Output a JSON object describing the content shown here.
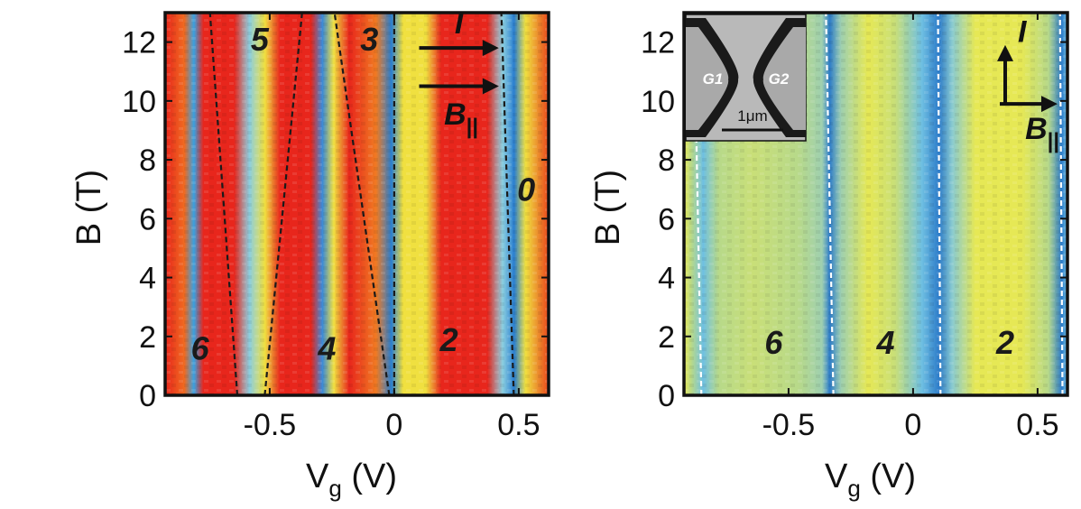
{
  "chart_data": [
    {
      "type": "heatmap",
      "title": "",
      "xlabel_main": "V",
      "xlabel_sub": "g",
      "xlabel_unit": " (V)",
      "ylabel": "B (T)",
      "xlim": [
        -0.92,
        0.62
      ],
      "ylim": [
        0,
        13
      ],
      "xticks": [
        {
          "value": -0.5,
          "label": "-0.5"
        },
        {
          "value": 0,
          "label": "0"
        },
        {
          "value": 0.5,
          "label": "0.5"
        }
      ],
      "yticks": [
        {
          "value": 0,
          "label": "0"
        },
        {
          "value": 2,
          "label": "2"
        },
        {
          "value": 4,
          "label": "4"
        },
        {
          "value": 6,
          "label": "6"
        },
        {
          "value": 8,
          "label": "8"
        },
        {
          "value": 10,
          "label": "10"
        },
        {
          "value": 12,
          "label": "12"
        }
      ],
      "colormap": "jet",
      "colors": {
        "red": "#e8261c",
        "yellow": "#f0e040",
        "lightblue": "#8ccfe0",
        "blue": "#2a7fd0",
        "dark": "#1a1a1a"
      },
      "boundary_lines": [
        {
          "points": [
            [
              -0.63,
              0
            ],
            [
              -0.74,
              13
            ]
          ],
          "style": "dashed",
          "color": "#1a1a1a"
        },
        {
          "points": [
            [
              -0.52,
              0
            ],
            [
              -0.37,
              13
            ]
          ],
          "style": "dashed",
          "color": "#1a1a1a"
        },
        {
          "points": [
            [
              -0.02,
              0
            ],
            [
              -0.24,
              13
            ]
          ],
          "style": "dashed",
          "color": "#1a1a1a"
        },
        {
          "points": [
            [
              0.0,
              0
            ],
            [
              0.0,
              13
            ]
          ],
          "style": "dashed",
          "color": "#1a1a1a"
        },
        {
          "points": [
            [
              0.48,
              0
            ],
            [
              0.43,
              13
            ]
          ],
          "style": "dashed",
          "color": "#1a1a1a"
        }
      ],
      "region_labels": [
        {
          "text": "5",
          "x": -0.54,
          "y": 12.0
        },
        {
          "text": "3",
          "x": -0.1,
          "y": 12.0
        },
        {
          "text": "0",
          "x": 0.53,
          "y": 6.9
        },
        {
          "text": "6",
          "x": -0.78,
          "y": 1.5
        },
        {
          "text": "4",
          "x": -0.27,
          "y": 1.5
        },
        {
          "text": "2",
          "x": 0.22,
          "y": 1.8
        }
      ],
      "arrow_labels": {
        "current": "I",
        "field_main": "B",
        "field_sub": "||"
      }
    },
    {
      "type": "heatmap",
      "title": "",
      "xlabel_main": "V",
      "xlabel_sub": "g",
      "xlabel_unit": " (V)",
      "ylabel": "B (T)",
      "xlim": [
        -0.92,
        0.62
      ],
      "ylim": [
        0,
        13
      ],
      "xticks": [
        {
          "value": -0.5,
          "label": "-0.5"
        },
        {
          "value": 0,
          "label": "0"
        },
        {
          "value": 0.5,
          "label": "0.5"
        }
      ],
      "yticks": [
        {
          "value": 0,
          "label": "0"
        },
        {
          "value": 2,
          "label": "2"
        },
        {
          "value": 4,
          "label": "4"
        },
        {
          "value": 6,
          "label": "6"
        },
        {
          "value": 8,
          "label": "8"
        },
        {
          "value": 10,
          "label": "10"
        },
        {
          "value": 12,
          "label": "12"
        }
      ],
      "colormap": "jet",
      "colors": {
        "yellow": "#e6e855",
        "green": "#b7d98a",
        "lightblue": "#6fc0e2",
        "blue": "#2d7cc9",
        "white": "#ffffff"
      },
      "boundary_lines": [
        {
          "points": [
            [
              -0.85,
              0
            ],
            [
              -0.88,
              13
            ]
          ],
          "style": "dashed",
          "color": "#ffffff"
        },
        {
          "points": [
            [
              -0.32,
              0
            ],
            [
              -0.35,
              13
            ]
          ],
          "style": "dashed",
          "color": "#ffffff"
        },
        {
          "points": [
            [
              0.11,
              0
            ],
            [
              0.1,
              13
            ]
          ],
          "style": "dashed",
          "color": "#ffffff"
        },
        {
          "points": [
            [
              0.6,
              0
            ],
            [
              0.59,
              13
            ]
          ],
          "style": "dashed",
          "color": "#ffffff"
        }
      ],
      "region_labels": [
        {
          "text": "6",
          "x": -0.56,
          "y": 1.7
        },
        {
          "text": "4",
          "x": -0.11,
          "y": 1.7
        },
        {
          "text": "2",
          "x": 0.37,
          "y": 1.7
        }
      ],
      "arrow_labels": {
        "current": "I",
        "field_main": "B",
        "field_sub": "||"
      },
      "inset": {
        "gate_left": "G1",
        "gate_right": "G2",
        "scalebar": "1μm"
      }
    }
  ]
}
